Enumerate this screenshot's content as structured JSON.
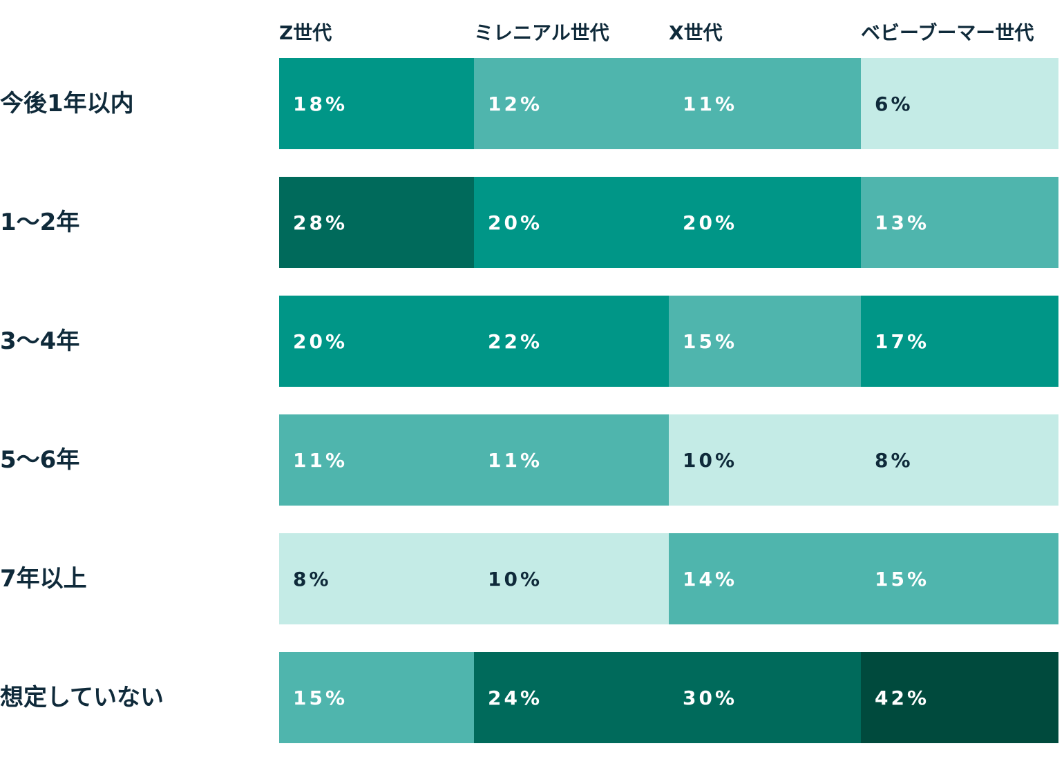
{
  "chart_data": {
    "type": "heatmap",
    "columns": [
      "Z世代",
      "ミレニアル世代",
      "X世代",
      "ベビーブーマー世代"
    ],
    "rows": [
      "今後1年以内",
      "1〜2年",
      "3〜4年",
      "5〜6年",
      "7年以上",
      "想定していない"
    ],
    "values": [
      [
        18,
        12,
        11,
        6
      ],
      [
        28,
        20,
        20,
        13
      ],
      [
        20,
        22,
        15,
        17
      ],
      [
        11,
        11,
        10,
        8
      ],
      [
        8,
        10,
        14,
        15
      ],
      [
        15,
        24,
        30,
        42
      ]
    ],
    "unit": "%",
    "color_scale": [
      {
        "max": 10,
        "color": "#c4ebe6",
        "text": "#0f2a3a"
      },
      {
        "max": 15,
        "color": "#4fb5ad",
        "text": "#ffffff"
      },
      {
        "max": 22,
        "color": "#009687",
        "text": "#ffffff"
      },
      {
        "max": 30,
        "color": "#006a5b",
        "text": "#ffffff"
      },
      {
        "max": 100,
        "color": "#004a3d",
        "text": "#ffffff"
      }
    ]
  }
}
